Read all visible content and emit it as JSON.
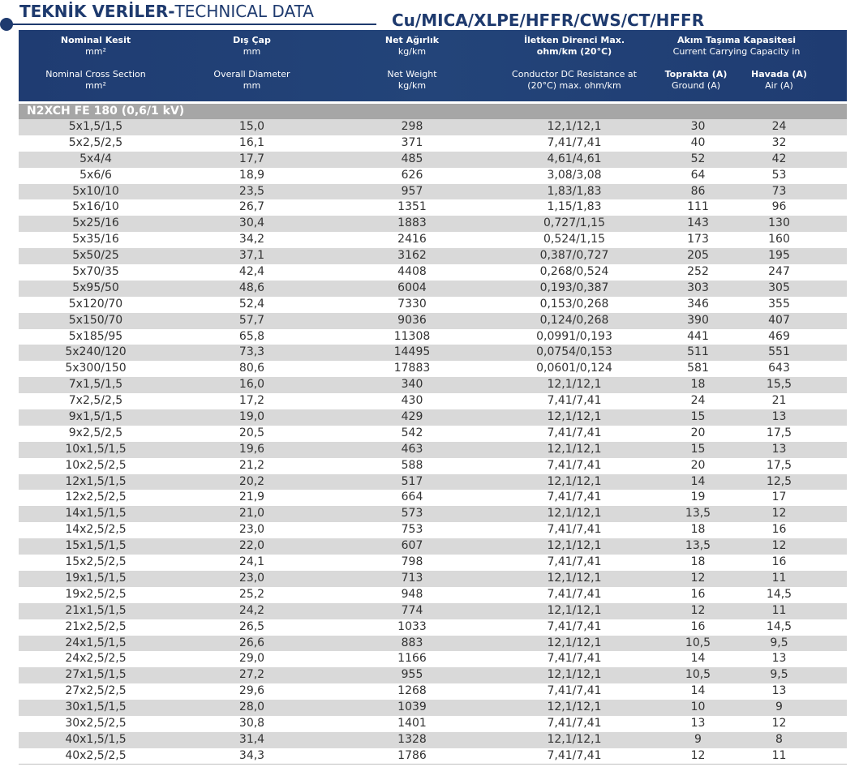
{
  "title": {
    "tr": "TEKNİK VERİLER-",
    "en": "TECHNICAL DATA",
    "code": "Cu/MICA/XLPE/HFFR/CWS/CT/HFFR"
  },
  "header": {
    "col1": {
      "tr": "Nominal Kesit",
      "tr_unit": "mm²",
      "en": "Nominal Cross Section",
      "en_unit": "mm²"
    },
    "col2": {
      "tr": "Dış Çap",
      "tr_unit": "mm",
      "en": "Overall Diameter",
      "en_unit": "mm"
    },
    "col3": {
      "tr": "Net Ağırlık",
      "tr_unit": "kg/km",
      "en": "Net Weight",
      "en_unit": "kg/km"
    },
    "col4": {
      "tr": "İletken Direnci Max.",
      "tr_unit": "ohm/km (20°C)",
      "en": "Conductor DC Resistance at",
      "en_unit": "(20°C) max. ohm/km"
    },
    "col5": {
      "tr": "Akım Taşıma Kapasitesi",
      "en": "Current Carrying Capacity in"
    },
    "ground": {
      "tr": "Toprakta (A)",
      "en": "Ground (A)"
    },
    "air": {
      "tr": "Havada (A)",
      "en": "Air (A)"
    }
  },
  "section": "N2XCH FE 180 (0,6/1 kV)",
  "rows": [
    [
      "5x1,5/1,5",
      "15,0",
      "298",
      "12,1/12,1",
      "30",
      "24"
    ],
    [
      "5x2,5/2,5",
      "16,1",
      "371",
      "7,41/7,41",
      "40",
      "32"
    ],
    [
      "5x4/4",
      "17,7",
      "485",
      "4,61/4,61",
      "52",
      "42"
    ],
    [
      "5x6/6",
      "18,9",
      "626",
      "3,08/3,08",
      "64",
      "53"
    ],
    [
      "5x10/10",
      "23,5",
      "957",
      "1,83/1,83",
      "86",
      "73"
    ],
    [
      "5x16/10",
      "26,7",
      "1351",
      "1,15/1,83",
      "111",
      "96"
    ],
    [
      "5x25/16",
      "30,4",
      "1883",
      "0,727/1,15",
      "143",
      "130"
    ],
    [
      "5x35/16",
      "34,2",
      "2416",
      "0,524/1,15",
      "173",
      "160"
    ],
    [
      "5x50/25",
      "37,1",
      "3162",
      "0,387/0,727",
      "205",
      "195"
    ],
    [
      "5x70/35",
      "42,4",
      "4408",
      "0,268/0,524",
      "252",
      "247"
    ],
    [
      "5x95/50",
      "48,6",
      "6004",
      "0,193/0,387",
      "303",
      "305"
    ],
    [
      "5x120/70",
      "52,4",
      "7330",
      "0,153/0,268",
      "346",
      "355"
    ],
    [
      "5x150/70",
      "57,7",
      "9036",
      "0,124/0,268",
      "390",
      "407"
    ],
    [
      "5x185/95",
      "65,8",
      "11308",
      "0,0991/0,193",
      "441",
      "469"
    ],
    [
      "5x240/120",
      "73,3",
      "14495",
      "0,0754/0,153",
      "511",
      "551"
    ],
    [
      "5x300/150",
      "80,6",
      "17883",
      "0,0601/0,124",
      "581",
      "643"
    ],
    [
      "7x1,5/1,5",
      "16,0",
      "340",
      "12,1/12,1",
      "18",
      "15,5"
    ],
    [
      "7x2,5/2,5",
      "17,2",
      "430",
      "7,41/7,41",
      "24",
      "21"
    ],
    [
      "9x1,5/1,5",
      "19,0",
      "429",
      "12,1/12,1",
      "15",
      "13"
    ],
    [
      "9x2,5/2,5",
      "20,5",
      "542",
      "7,41/7,41",
      "20",
      "17,5"
    ],
    [
      "10x1,5/1,5",
      "19,6",
      "463",
      "12,1/12,1",
      "15",
      "13"
    ],
    [
      "10x2,5/2,5",
      "21,2",
      "588",
      "7,41/7,41",
      "20",
      "17,5"
    ],
    [
      "12x1,5/1,5",
      "20,2",
      "517",
      "12,1/12,1",
      "14",
      "12,5"
    ],
    [
      "12x2,5/2,5",
      "21,9",
      "664",
      "7,41/7,41",
      "19",
      "17"
    ],
    [
      "14x1,5/1,5",
      "21,0",
      "573",
      "12,1/12,1",
      "13,5",
      "12"
    ],
    [
      "14x2,5/2,5",
      "23,0",
      "753",
      "7,41/7,41",
      "18",
      "16"
    ],
    [
      "15x1,5/1,5",
      "22,0",
      "607",
      "12,1/12,1",
      "13,5",
      "12"
    ],
    [
      "15x2,5/2,5",
      "24,1",
      "798",
      "7,41/7,41",
      "18",
      "16"
    ],
    [
      "19x1,5/1,5",
      "23,0",
      "713",
      "12,1/12,1",
      "12",
      "11"
    ],
    [
      "19x2,5/2,5",
      "25,2",
      "948",
      "7,41/7,41",
      "16",
      "14,5"
    ],
    [
      "21x1,5/1,5",
      "24,2",
      "774",
      "12,1/12,1",
      "12",
      "11"
    ],
    [
      "21x2,5/2,5",
      "26,5",
      "1033",
      "7,41/7,41",
      "16",
      "14,5"
    ],
    [
      "24x1,5/1,5",
      "26,6",
      "883",
      "12,1/12,1",
      "10,5",
      "9,5"
    ],
    [
      "24x2,5/2,5",
      "29,0",
      "1166",
      "7,41/7,41",
      "14",
      "13"
    ],
    [
      "27x1,5/1,5",
      "27,2",
      "955",
      "12,1/12,1",
      "10,5",
      "9,5"
    ],
    [
      "27x2,5/2,5",
      "29,6",
      "1268",
      "7,41/7,41",
      "14",
      "13"
    ],
    [
      "30x1,5/1,5",
      "28,0",
      "1039",
      "12,1/12,1",
      "10",
      "9"
    ],
    [
      "30x2,5/2,5",
      "30,8",
      "1401",
      "7,41/7,41",
      "13",
      "12"
    ],
    [
      "40x1,5/1,5",
      "31,4",
      "1328",
      "12,1/12,1",
      "9",
      "8"
    ],
    [
      "40x2,5/2,5",
      "34,3",
      "1786",
      "7,41/7,41",
      "12",
      "11"
    ]
  ]
}
